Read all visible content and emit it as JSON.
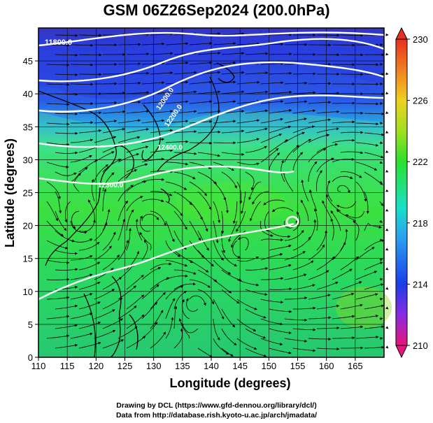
{
  "title": "GSM 06Z26Sep2024 (200.0hPa)",
  "xlabel": "Longitude (degrees)",
  "ylabel": "Latitude (degrees)",
  "credits": [
    "Drawing by DCL (https://www.gfd-dennou.org/library/dcl/)",
    "Data from http://database.rish.kyoto-u.ac.jp/arch/jmadata/"
  ],
  "map": {
    "lon_range": [
      110,
      170
    ],
    "lat_range": [
      0,
      50
    ],
    "x_ticks": [
      "110",
      "115",
      "120",
      "125",
      "130",
      "135",
      "140",
      "145",
      "150",
      "155",
      "160",
      "165"
    ],
    "y_ticks": [
      "0",
      "5",
      "10",
      "15",
      "20",
      "25",
      "30",
      "35",
      "40",
      "45"
    ],
    "grid": true
  },
  "contours": [
    {
      "label": "11800.0"
    },
    {
      "label": "12000.0"
    },
    {
      "label": "12200.0"
    },
    {
      "label": "12400.0"
    },
    {
      "label": "12300.0"
    }
  ],
  "colorbar": {
    "min": 210,
    "max": 230,
    "ticks": [
      "230",
      "226",
      "222",
      "218",
      "214",
      "210"
    ],
    "colors": [
      "#e8157a",
      "#8a2be2",
      "#1a3ee8",
      "#2aa0f0",
      "#19e0c8",
      "#2ce02c",
      "#a0e020",
      "#f0d020",
      "#f08020",
      "#e83020"
    ]
  },
  "colors": {
    "ocean_warm": "#30d860",
    "ocean_cool": "#2a40e0",
    "coast": "#000000",
    "contour": "#ffffff"
  }
}
